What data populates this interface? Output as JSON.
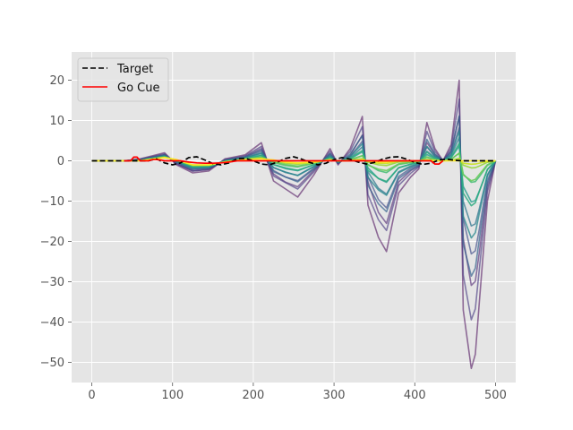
{
  "chart_data": {
    "type": "line",
    "title": "",
    "xlabel": "",
    "ylabel": "",
    "xlim": [
      -25,
      525
    ],
    "ylim": [
      -55,
      27
    ],
    "xticks": [
      0,
      100,
      200,
      300,
      400,
      500
    ],
    "yticks": [
      -50,
      -40,
      -30,
      -20,
      -10,
      0,
      10,
      20
    ],
    "grid": true,
    "background": "#e5e5e5",
    "legend": {
      "placement": "upper-left",
      "entries": [
        {
          "label": "Target",
          "color": "#000000",
          "style": "dashed"
        },
        {
          "label": "Go Cue",
          "color": "#ff0000",
          "style": "solid"
        }
      ]
    },
    "colormap": "viridis",
    "trajectory_count": 14,
    "series": [
      {
        "name": "Target",
        "color": "#000000",
        "style": "dashed",
        "x": [
          0,
          70,
          80,
          90,
          100,
          110,
          120,
          130,
          140,
          150,
          160,
          170,
          180,
          190,
          200,
          210,
          220,
          230,
          240,
          250,
          260,
          270,
          280,
          290,
          300,
          310,
          320,
          330,
          340,
          350,
          360,
          370,
          380,
          390,
          400,
          410,
          420,
          430,
          440,
          450,
          460,
          470,
          480,
          490,
          500
        ],
        "y": [
          0,
          0,
          0.5,
          -0.5,
          -1.0,
          -0.5,
          0.8,
          1.0,
          0.2,
          -0.7,
          -1.0,
          -0.5,
          0.5,
          0.6,
          0,
          -0.8,
          -1.0,
          -0.3,
          0.6,
          1.0,
          0.4,
          -0.4,
          -1.0,
          -0.6,
          0.3,
          0.8,
          0.4,
          -0.3,
          -0.8,
          -0.4,
          0.4,
          0.9,
          1.0,
          0.4,
          -0.4,
          -0.9,
          -0.6,
          0.2,
          0.4,
          0.1,
          0,
          0,
          0,
          0,
          0
        ]
      },
      {
        "name": "Go Cue",
        "color": "#ff0000",
        "style": "solid",
        "x": [
          40,
          48,
          52,
          56,
          60,
          65,
          70,
          75,
          80,
          85,
          90,
          95,
          100,
          110,
          120,
          130,
          140,
          150,
          160,
          170,
          180,
          420,
          425,
          430,
          435
        ],
        "y": [
          0,
          0,
          0.9,
          0.9,
          0,
          0,
          0,
          0.3,
          0.3,
          0.2,
          0,
          0,
          0,
          0,
          -0.3,
          -0.5,
          -0.6,
          -0.6,
          -0.5,
          -0.3,
          0,
          0,
          -0.8,
          -0.8,
          0
        ]
      }
    ],
    "trajectory_envelope": {
      "x": [
        0,
        40,
        60,
        90,
        105,
        125,
        145,
        165,
        190,
        210,
        225,
        240,
        255,
        275,
        295,
        305,
        320,
        335,
        342,
        355,
        365,
        380,
        395,
        405,
        415,
        425,
        435,
        445,
        455,
        460,
        470,
        475,
        480,
        490,
        500
      ],
      "high": [
        0,
        0,
        0.5,
        2.0,
        -0.5,
        -2.0,
        -1.5,
        0.5,
        1.5,
        4.5,
        0,
        -3.0,
        -2.0,
        0,
        3.0,
        0,
        3.0,
        11.0,
        9.0,
        -1.0,
        -3.0,
        0,
        1.0,
        0,
        9.5,
        3.0,
        0,
        4.0,
        20.0,
        23.5,
        14.0,
        8.0,
        2.0,
        0.5,
        0
      ],
      "low": [
        0,
        0,
        0,
        0.5,
        -1.0,
        -3.0,
        -2.5,
        -0.5,
        0,
        0,
        -5.0,
        -7.0,
        -9.0,
        -3.5,
        -1.0,
        -1.0,
        -3.0,
        -4.0,
        -11.0,
        -19.0,
        -22.5,
        -8.0,
        -4.0,
        -2.0,
        -8.0,
        -2.0,
        0,
        -1.0,
        -10.0,
        -37.0,
        -51.5,
        -48.0,
        -35.0,
        -10.0,
        0
      ],
      "final": [
        0,
        0,
        0,
        0.8,
        0.3,
        -1.0,
        -1.0,
        -0.3,
        0.3,
        0.5,
        0.2,
        -0.3,
        -0.5,
        -0.3,
        0.2,
        0,
        0,
        0.2,
        0,
        -0.3,
        -0.3,
        0,
        0,
        0,
        0.1,
        0,
        0,
        0,
        0,
        0,
        0,
        0,
        0,
        0,
        0
      ]
    }
  }
}
